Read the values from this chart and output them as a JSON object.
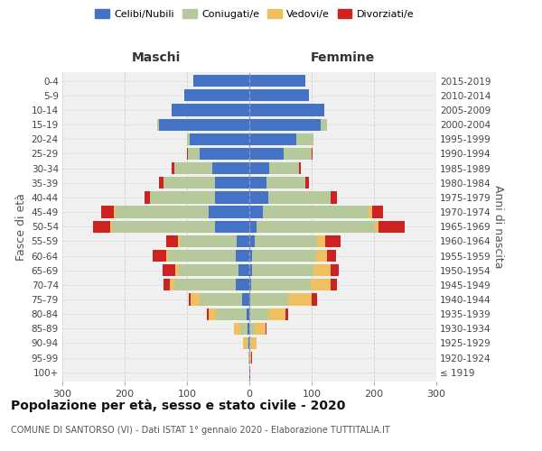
{
  "age_groups": [
    "100+",
    "95-99",
    "90-94",
    "85-89",
    "80-84",
    "75-79",
    "70-74",
    "65-69",
    "60-64",
    "55-59",
    "50-54",
    "45-49",
    "40-44",
    "35-39",
    "30-34",
    "25-29",
    "20-24",
    "15-19",
    "10-14",
    "5-9",
    "0-4"
  ],
  "birth_years": [
    "≤ 1919",
    "1920-1924",
    "1925-1929",
    "1930-1934",
    "1935-1939",
    "1940-1944",
    "1945-1949",
    "1950-1954",
    "1955-1959",
    "1960-1964",
    "1965-1969",
    "1970-1974",
    "1975-1979",
    "1980-1984",
    "1985-1989",
    "1990-1994",
    "1995-1999",
    "2000-2004",
    "2005-2009",
    "2010-2014",
    "2015-2019"
  ],
  "colors": {
    "celibe": "#4472c4",
    "coniugato": "#b5c99a",
    "vedovo": "#f0c060",
    "divorziato": "#cc2222"
  },
  "male": {
    "celibe": [
      0,
      0,
      1,
      3,
      5,
      12,
      22,
      18,
      22,
      20,
      55,
      65,
      55,
      55,
      60,
      80,
      95,
      145,
      125,
      105,
      90
    ],
    "coniugato": [
      0,
      1,
      4,
      12,
      48,
      68,
      98,
      95,
      108,
      92,
      165,
      150,
      105,
      82,
      60,
      18,
      5,
      3,
      0,
      0,
      0
    ],
    "vedovo": [
      0,
      1,
      5,
      10,
      12,
      14,
      8,
      6,
      3,
      3,
      3,
      2,
      0,
      0,
      0,
      0,
      0,
      0,
      0,
      0,
      0
    ],
    "divorziato": [
      0,
      0,
      0,
      0,
      3,
      3,
      10,
      20,
      22,
      18,
      28,
      20,
      8,
      8,
      5,
      2,
      0,
      0,
      0,
      0,
      0
    ]
  },
  "female": {
    "celibe": [
      0,
      0,
      0,
      0,
      0,
      2,
      3,
      5,
      5,
      8,
      12,
      22,
      30,
      28,
      32,
      55,
      75,
      115,
      120,
      95,
      90
    ],
    "coniugata": [
      0,
      0,
      2,
      8,
      30,
      60,
      95,
      98,
      102,
      100,
      190,
      170,
      100,
      62,
      48,
      45,
      28,
      10,
      0,
      0,
      0
    ],
    "vedova": [
      0,
      3,
      10,
      18,
      28,
      38,
      32,
      28,
      18,
      14,
      5,
      5,
      0,
      0,
      0,
      0,
      0,
      0,
      0,
      0,
      0
    ],
    "divorziata": [
      1,
      1,
      0,
      2,
      5,
      8,
      10,
      12,
      14,
      25,
      42,
      18,
      10,
      5,
      3,
      2,
      0,
      0,
      0,
      0,
      0
    ]
  },
  "xlim": 300,
  "title": "Popolazione per età, sesso e stato civile - 2020",
  "subtitle": "COMUNE DI SANTORSO (VI) - Dati ISTAT 1° gennaio 2020 - Elaborazione TUTTITALIA.IT",
  "ylabel_left": "Fasce di età",
  "ylabel_right": "Anni di nascita",
  "header_maschi": "Maschi",
  "header_femmine": "Femmine",
  "bg_color": "#f0f0f0",
  "grid_color": "#cccccc"
}
